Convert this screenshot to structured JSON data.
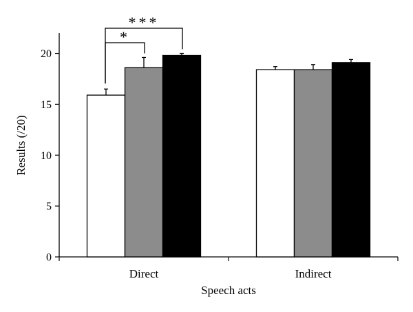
{
  "chart_data": {
    "type": "bar",
    "title": "",
    "xlabel": "Speech acts",
    "ylabel": "Results (/20)",
    "ylim": [
      0,
      22
    ],
    "yticks": [
      "0",
      "5",
      "10",
      "15",
      "20"
    ],
    "categories": [
      "Direct",
      "Indirect"
    ],
    "series": [
      {
        "values": [
          15.9,
          18.4
        ],
        "errors": [
          0.6,
          0.3
        ],
        "color": "#ffffff"
      },
      {
        "values": [
          18.6,
          18.4
        ],
        "errors": [
          1.0,
          0.5
        ],
        "color": "#8c8c8c"
      },
      {
        "values": [
          19.8,
          19.1
        ],
        "errors": [
          0.2,
          0.3
        ],
        "color": "#000000"
      }
    ],
    "significance": [
      {
        "category": "Direct",
        "from_series": 0,
        "to_series": 1,
        "label": "*"
      },
      {
        "category": "Direct",
        "from_series": 0,
        "to_series": 2,
        "label": "***"
      }
    ],
    "grid": false,
    "legend": "none"
  }
}
